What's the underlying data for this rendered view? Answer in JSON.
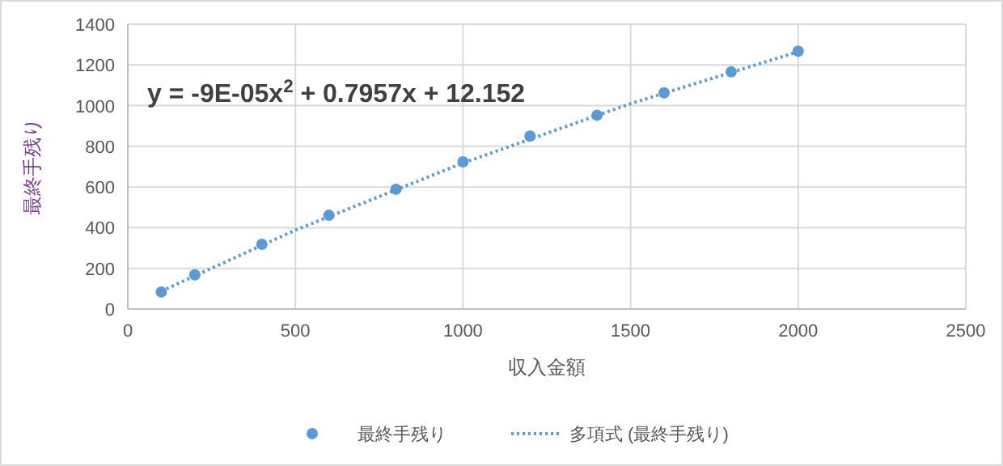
{
  "chart_data": {
    "type": "scatter",
    "xlabel": "収入金額",
    "ylabel": "最終手残り",
    "annotations": [
      "y = -9E-05x$^{2}$ + 0.7957x + 12.152"
    ],
    "series": [
      {
        "name": "最終手残り",
        "color": "#5b9bd5",
        "marker": "circle",
        "x": [
          100,
          200,
          400,
          600,
          800,
          1000,
          1200,
          1400,
          1600,
          1800,
          2000
        ],
        "values": [
          84,
          168,
          318,
          461,
          589,
          724,
          850,
          953,
          1063,
          1166,
          1268
        ]
      },
      {
        "name": "多項式 (最終手残り)",
        "type": "line",
        "color": "#5b9bd5",
        "line_style": "dotted",
        "marker": "none",
        "x": [
          100,
          500,
          1000,
          1500,
          2000
        ],
        "values": [
          88,
          388,
          718,
          1010,
          1265
        ]
      }
    ],
    "xlim": [
      0,
      2500
    ],
    "xticks": [
      0,
      500,
      1000,
      1500,
      2000,
      2500
    ],
    "ylim": [
      0,
      1400
    ],
    "yticks": [
      0,
      200,
      400,
      600,
      800,
      1000,
      1200,
      1400
    ],
    "grid": true,
    "legend": "bottom"
  }
}
